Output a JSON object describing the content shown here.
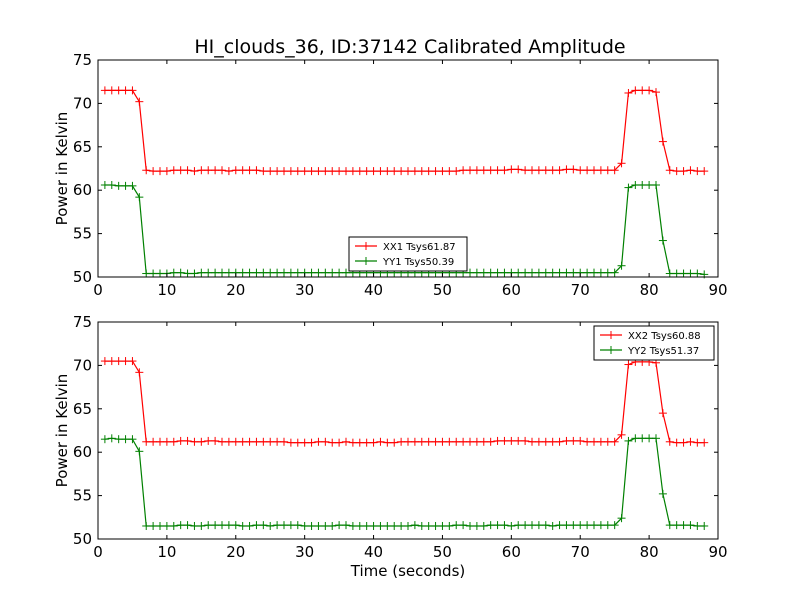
{
  "figure": {
    "title": "HI_clouds_36, ID:37142 Calibrated Amplitude"
  },
  "chart_data": [
    {
      "type": "line",
      "title": "HI_clouds_36, ID:37142 Calibrated Amplitude",
      "xlabel": "",
      "ylabel": "Power in Kelvin",
      "xlim": [
        0,
        90
      ],
      "ylim": [
        50,
        75
      ],
      "xticks": [
        "0",
        "10",
        "20",
        "30",
        "40",
        "50",
        "60",
        "70",
        "80",
        "90"
      ],
      "yticks": [
        "50",
        "55",
        "60",
        "65",
        "70",
        "75"
      ],
      "grid": false,
      "legend_position": "lower-center",
      "markers": "plus",
      "series": [
        {
          "name": "XX1 Tsys61.87",
          "color": "#ff0000",
          "x": [
            1,
            2,
            3,
            4,
            5,
            6,
            7,
            8,
            9,
            10,
            11,
            12,
            13,
            14,
            15,
            16,
            17,
            18,
            19,
            20,
            21,
            22,
            23,
            24,
            25,
            26,
            27,
            28,
            29,
            30,
            31,
            32,
            33,
            34,
            35,
            36,
            37,
            38,
            39,
            40,
            41,
            42,
            43,
            44,
            45,
            46,
            47,
            48,
            49,
            50,
            51,
            52,
            53,
            54,
            55,
            56,
            57,
            58,
            59,
            60,
            61,
            62,
            63,
            64,
            65,
            66,
            67,
            68,
            69,
            70,
            71,
            72,
            73,
            74,
            75,
            76,
            77,
            78,
            79,
            80,
            81,
            82,
            83,
            84,
            85,
            86,
            87,
            88
          ],
          "y": [
            71.5,
            71.5,
            71.5,
            71.5,
            71.5,
            70.2,
            62.3,
            62.2,
            62.2,
            62.2,
            62.3,
            62.3,
            62.3,
            62.2,
            62.3,
            62.3,
            62.3,
            62.3,
            62.2,
            62.3,
            62.3,
            62.3,
            62.3,
            62.2,
            62.2,
            62.2,
            62.2,
            62.2,
            62.2,
            62.2,
            62.2,
            62.2,
            62.2,
            62.2,
            62.2,
            62.2,
            62.2,
            62.2,
            62.2,
            62.2,
            62.2,
            62.2,
            62.2,
            62.2,
            62.2,
            62.2,
            62.2,
            62.2,
            62.2,
            62.2,
            62.2,
            62.2,
            62.3,
            62.3,
            62.3,
            62.3,
            62.3,
            62.3,
            62.3,
            62.4,
            62.4,
            62.3,
            62.3,
            62.3,
            62.3,
            62.3,
            62.3,
            62.4,
            62.4,
            62.3,
            62.3,
            62.3,
            62.3,
            62.3,
            62.3,
            63.1,
            71.2,
            71.5,
            71.5,
            71.5,
            71.3,
            65.6,
            62.3,
            62.2,
            62.2,
            62.3,
            62.2,
            62.2
          ]
        },
        {
          "name": "YY1 Tsys50.39",
          "color": "#008000",
          "x": [
            1,
            2,
            3,
            4,
            5,
            6,
            7,
            8,
            9,
            10,
            11,
            12,
            13,
            14,
            15,
            16,
            17,
            18,
            19,
            20,
            21,
            22,
            23,
            24,
            25,
            26,
            27,
            28,
            29,
            30,
            31,
            32,
            33,
            34,
            35,
            36,
            37,
            38,
            39,
            40,
            41,
            42,
            43,
            44,
            45,
            46,
            47,
            48,
            49,
            50,
            51,
            52,
            53,
            54,
            55,
            56,
            57,
            58,
            59,
            60,
            61,
            62,
            63,
            64,
            65,
            66,
            67,
            68,
            69,
            70,
            71,
            72,
            73,
            74,
            75,
            76,
            77,
            78,
            79,
            80,
            81,
            82,
            83,
            84,
            85,
            86,
            87,
            88
          ],
          "y": [
            60.6,
            60.6,
            60.5,
            60.5,
            60.5,
            59.2,
            50.4,
            50.4,
            50.4,
            50.4,
            50.5,
            50.5,
            50.4,
            50.4,
            50.5,
            50.5,
            50.5,
            50.5,
            50.5,
            50.5,
            50.5,
            50.5,
            50.5,
            50.5,
            50.5,
            50.5,
            50.5,
            50.5,
            50.5,
            50.5,
            50.5,
            50.5,
            50.5,
            50.5,
            50.5,
            50.5,
            50.5,
            50.5,
            50.5,
            50.5,
            50.5,
            50.5,
            50.5,
            50.5,
            50.5,
            50.5,
            50.5,
            50.5,
            50.5,
            50.5,
            50.5,
            50.5,
            50.5,
            50.5,
            50.5,
            50.5,
            50.5,
            50.5,
            50.5,
            50.5,
            50.5,
            50.5,
            50.5,
            50.5,
            50.5,
            50.5,
            50.5,
            50.5,
            50.5,
            50.5,
            50.5,
            50.5,
            50.5,
            50.5,
            50.5,
            51.3,
            60.3,
            60.6,
            60.6,
            60.6,
            60.6,
            54.2,
            50.4,
            50.4,
            50.4,
            50.4,
            50.4,
            50.3
          ]
        }
      ]
    },
    {
      "type": "line",
      "title": "",
      "xlabel": "Time (seconds)",
      "ylabel": "Power in Kelvin",
      "xlim": [
        0,
        90
      ],
      "ylim": [
        50,
        75
      ],
      "xticks": [
        "0",
        "10",
        "20",
        "30",
        "40",
        "50",
        "60",
        "70",
        "80",
        "90"
      ],
      "yticks": [
        "50",
        "55",
        "60",
        "65",
        "70",
        "75"
      ],
      "grid": false,
      "legend_position": "upper-right",
      "markers": "plus",
      "series": [
        {
          "name": "XX2 Tsys60.88",
          "color": "#ff0000",
          "x": [
            1,
            2,
            3,
            4,
            5,
            6,
            7,
            8,
            9,
            10,
            11,
            12,
            13,
            14,
            15,
            16,
            17,
            18,
            19,
            20,
            21,
            22,
            23,
            24,
            25,
            26,
            27,
            28,
            29,
            30,
            31,
            32,
            33,
            34,
            35,
            36,
            37,
            38,
            39,
            40,
            41,
            42,
            43,
            44,
            45,
            46,
            47,
            48,
            49,
            50,
            51,
            52,
            53,
            54,
            55,
            56,
            57,
            58,
            59,
            60,
            61,
            62,
            63,
            64,
            65,
            66,
            67,
            68,
            69,
            70,
            71,
            72,
            73,
            74,
            75,
            76,
            77,
            78,
            79,
            80,
            81,
            82,
            83,
            84,
            85,
            86,
            87,
            88
          ],
          "y": [
            70.5,
            70.5,
            70.5,
            70.5,
            70.5,
            69.2,
            61.2,
            61.2,
            61.2,
            61.2,
            61.2,
            61.3,
            61.3,
            61.2,
            61.2,
            61.3,
            61.3,
            61.2,
            61.2,
            61.2,
            61.2,
            61.2,
            61.2,
            61.2,
            61.2,
            61.2,
            61.2,
            61.1,
            61.1,
            61.1,
            61.1,
            61.2,
            61.2,
            61.1,
            61.1,
            61.2,
            61.1,
            61.1,
            61.1,
            61.1,
            61.2,
            61.1,
            61.1,
            61.2,
            61.2,
            61.2,
            61.2,
            61.2,
            61.2,
            61.2,
            61.2,
            61.2,
            61.2,
            61.2,
            61.2,
            61.2,
            61.2,
            61.3,
            61.3,
            61.3,
            61.3,
            61.3,
            61.2,
            61.2,
            61.2,
            61.2,
            61.2,
            61.3,
            61.3,
            61.3,
            61.2,
            61.2,
            61.2,
            61.2,
            61.2,
            62.0,
            70.1,
            70.4,
            70.4,
            70.4,
            70.3,
            64.5,
            61.2,
            61.1,
            61.1,
            61.2,
            61.1,
            61.1
          ]
        },
        {
          "name": "YY2 Tsys51.37",
          "color": "#008000",
          "x": [
            1,
            2,
            3,
            4,
            5,
            6,
            7,
            8,
            9,
            10,
            11,
            12,
            13,
            14,
            15,
            16,
            17,
            18,
            19,
            20,
            21,
            22,
            23,
            24,
            25,
            26,
            27,
            28,
            29,
            30,
            31,
            32,
            33,
            34,
            35,
            36,
            37,
            38,
            39,
            40,
            41,
            42,
            43,
            44,
            45,
            46,
            47,
            48,
            49,
            50,
            51,
            52,
            53,
            54,
            55,
            56,
            57,
            58,
            59,
            60,
            61,
            62,
            63,
            64,
            65,
            66,
            67,
            68,
            69,
            70,
            71,
            72,
            73,
            74,
            75,
            76,
            77,
            78,
            79,
            80,
            81,
            82,
            83,
            84,
            85,
            86,
            87,
            88
          ],
          "y": [
            61.5,
            61.6,
            61.5,
            61.5,
            61.5,
            60.1,
            51.5,
            51.5,
            51.5,
            51.5,
            51.5,
            51.6,
            51.6,
            51.5,
            51.5,
            51.6,
            51.6,
            51.6,
            51.6,
            51.6,
            51.5,
            51.5,
            51.6,
            51.6,
            51.5,
            51.6,
            51.6,
            51.6,
            51.6,
            51.5,
            51.5,
            51.5,
            51.5,
            51.5,
            51.6,
            51.6,
            51.5,
            51.5,
            51.5,
            51.5,
            51.5,
            51.5,
            51.5,
            51.5,
            51.5,
            51.6,
            51.5,
            51.5,
            51.5,
            51.5,
            51.5,
            51.6,
            51.6,
            51.5,
            51.5,
            51.5,
            51.6,
            51.6,
            51.6,
            51.5,
            51.6,
            51.6,
            51.6,
            51.6,
            51.6,
            51.5,
            51.6,
            51.6,
            51.6,
            51.6,
            51.6,
            51.6,
            51.6,
            51.6,
            51.6,
            52.4,
            61.3,
            61.6,
            61.6,
            61.6,
            61.6,
            55.2,
            51.6,
            51.6,
            51.6,
            51.6,
            51.5,
            51.5
          ]
        }
      ]
    }
  ]
}
